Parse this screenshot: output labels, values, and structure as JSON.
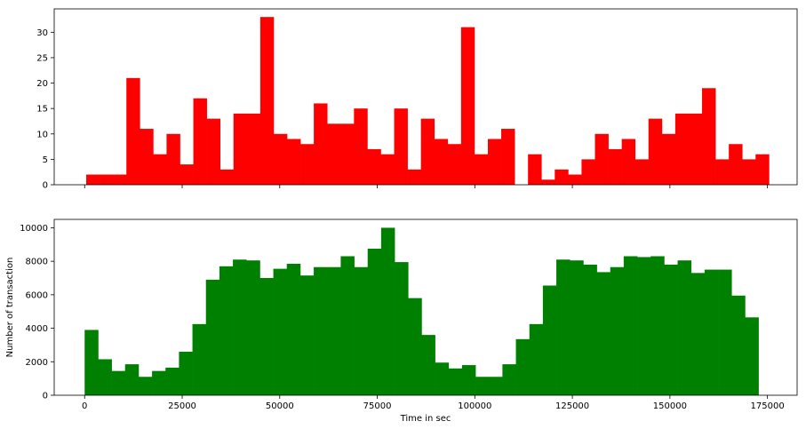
{
  "chart_data": [
    {
      "type": "bar",
      "subtype": "histogram",
      "color": "#ff0000",
      "xlabel": "",
      "ylabel": "",
      "xlim": [
        -7800,
        182600
      ],
      "ylim": [
        0,
        34.6
      ],
      "x_ticks": [
        0,
        25000,
        50000,
        75000,
        100000,
        125000,
        150000,
        175000
      ],
      "x_tick_labels_shown": false,
      "y_ticks": [
        0,
        5,
        10,
        15,
        20,
        25,
        30
      ],
      "y_tick_labels": [
        "0",
        "5",
        "10",
        "15",
        "20",
        "25",
        "30"
      ],
      "bin_start": 406,
      "bin_width": 3431,
      "values": [
        2,
        2,
        2,
        21,
        11,
        6,
        10,
        4,
        17,
        13,
        3,
        14,
        14,
        33,
        10,
        9,
        8,
        16,
        12,
        12,
        15,
        7,
        6,
        15,
        3,
        13,
        9,
        8,
        31,
        6,
        9,
        11,
        0,
        6,
        1,
        3,
        2,
        5,
        10,
        7,
        9,
        5,
        13,
        10,
        14,
        14,
        19,
        5,
        8,
        5,
        6
      ],
      "grid": false
    },
    {
      "type": "bar",
      "subtype": "histogram",
      "color": "#008000",
      "xlabel": "Time in sec",
      "ylabel": "Number of transaction",
      "xlim": [
        -7800,
        182600
      ],
      "ylim": [
        0,
        10500
      ],
      "x_ticks": [
        0,
        25000,
        50000,
        75000,
        100000,
        125000,
        150000,
        175000
      ],
      "x_tick_labels": [
        "0",
        "25000",
        "50000",
        "75000",
        "100000",
        "125000",
        "150000",
        "175000"
      ],
      "y_ticks": [
        0,
        2000,
        4000,
        6000,
        8000,
        10000
      ],
      "y_tick_labels": [
        "0",
        "2000",
        "4000",
        "6000",
        "8000",
        "10000"
      ],
      "bin_start": 0,
      "bin_width": 3454,
      "values": [
        3900,
        2150,
        1450,
        1850,
        1100,
        1450,
        1650,
        2600,
        4250,
        6900,
        7700,
        8100,
        8050,
        7000,
        7550,
        7850,
        7150,
        7650,
        7650,
        8300,
        7650,
        8750,
        10000,
        7950,
        5800,
        3600,
        1950,
        1600,
        1800,
        1100,
        1100,
        1850,
        3350,
        4250,
        6550,
        8100,
        8050,
        7800,
        7350,
        7650,
        8300,
        8250,
        8300,
        7800,
        8050,
        7300,
        7500,
        7500,
        5950,
        4650
      ],
      "grid": false
    }
  ]
}
